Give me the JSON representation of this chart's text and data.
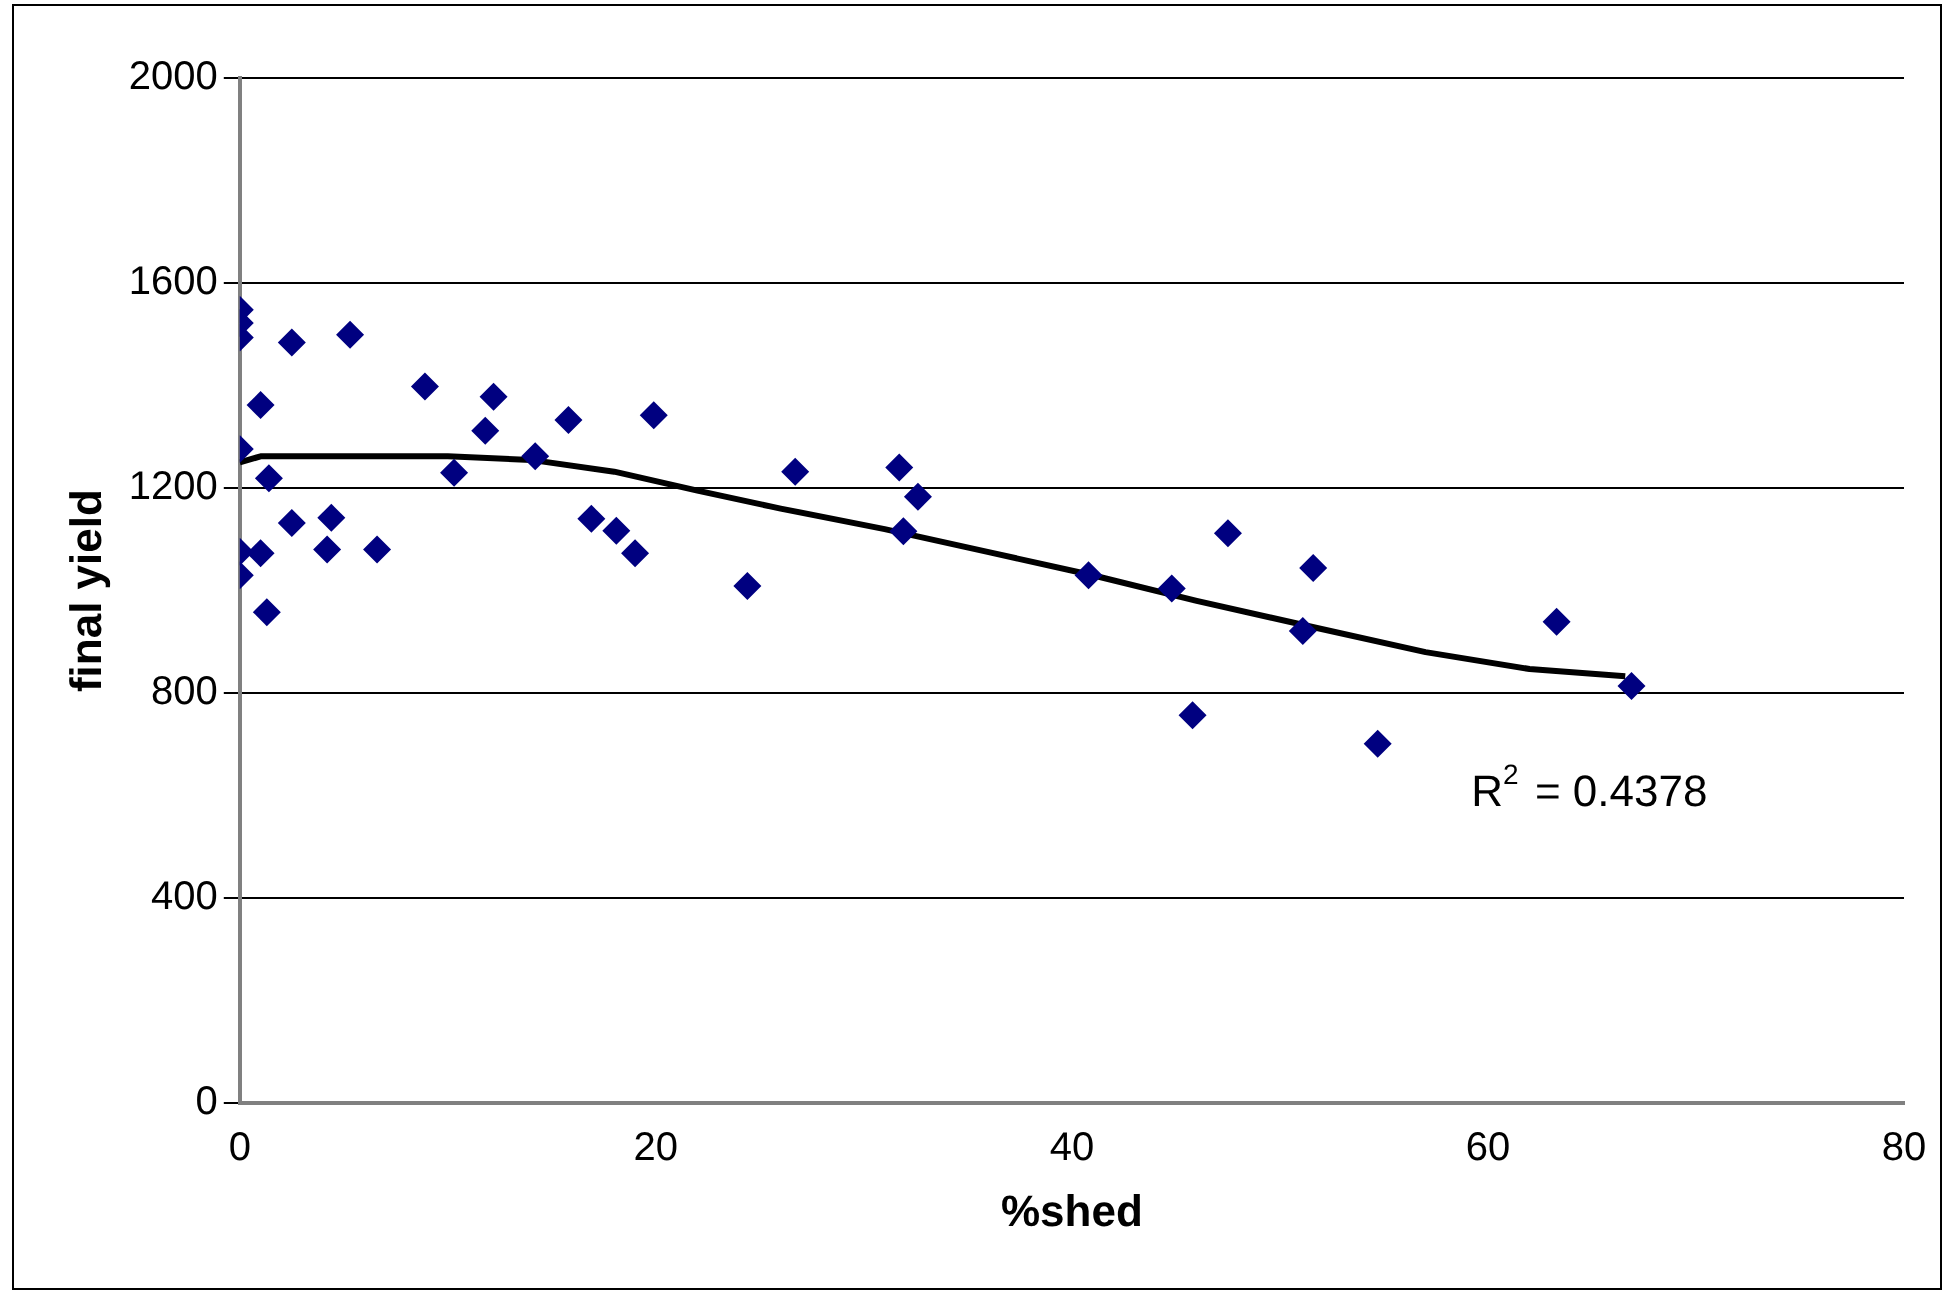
{
  "chart_data": {
    "type": "scatter",
    "xlabel": "%shed",
    "ylabel": "final yield",
    "xlim": [
      0,
      80
    ],
    "xticks": [
      0,
      20,
      40,
      60,
      80
    ],
    "ylim": [
      0,
      2000
    ],
    "yticks": [
      0,
      400,
      800,
      1200,
      1600,
      2000
    ],
    "grid": "y",
    "legend": false,
    "marker": "diamond",
    "annotations": [
      "R$^{2}$ = 0.4378"
    ],
    "series": [
      {
        "color": "#000080",
        "x": [
          0,
          0,
          0,
          2.5,
          5.3,
          1.0,
          0,
          1.4,
          8.9,
          12.2,
          11.8,
          10.3,
          14.2,
          15.8,
          19.9,
          2.5,
          4.4,
          0,
          1.0,
          4.2,
          6.6,
          0,
          1.3,
          16.9,
          18.1,
          19.0,
          26.7,
          24.4,
          31.7,
          32.6,
          31.9,
          40.8,
          44.8,
          47.5,
          51.6,
          51.1,
          45.8,
          54.7,
          63.3,
          66.9
        ],
        "values": [
          1548,
          1522,
          1494,
          1484,
          1499,
          1362,
          1276,
          1219,
          1398,
          1378,
          1312,
          1230,
          1262,
          1333,
          1342,
          1132,
          1142,
          1076,
          1073,
          1080,
          1080,
          1030,
          958,
          1140,
          1117,
          1073,
          1232,
          1009,
          1240,
          1183,
          1116,
          1030,
          1004,
          1112,
          1044,
          921,
          757,
          701,
          939,
          814
        ]
      },
      {
        "type": "line",
        "color": "#000000",
        "marker": "none",
        "x": [
          0,
          1,
          5,
          10,
          14,
          18,
          22,
          26,
          31,
          36,
          41,
          46,
          52,
          57,
          62,
          66.6
        ],
        "values": [
          1250,
          1262,
          1262,
          1262,
          1255,
          1232,
          1195,
          1160,
          1120,
          1075,
          1030,
          980,
          925,
          880,
          847,
          833
        ]
      }
    ]
  }
}
